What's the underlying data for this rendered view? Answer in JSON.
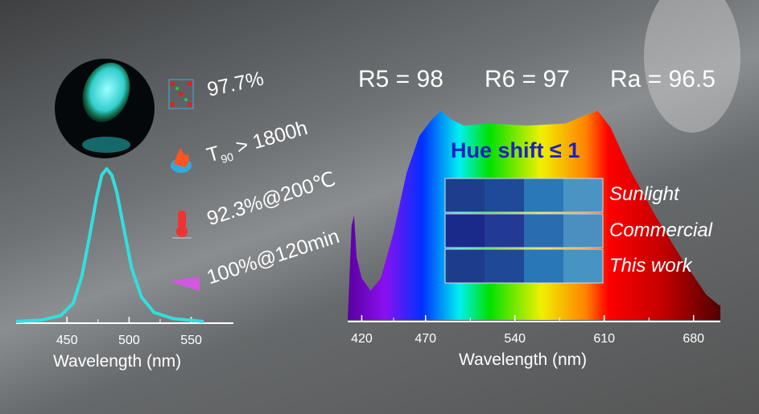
{
  "metrics": {
    "r5": "R5 = 98",
    "r6": "R6 = 97",
    "ra": "Ra = 96.5"
  },
  "properties": [
    {
      "icon": "crystal-structure-icon",
      "text": "97.7%"
    },
    {
      "icon": "fire-water-icon",
      "t_main": "T",
      "t_sub": "90",
      "text": " > 1800h"
    },
    {
      "icon": "thermometer-icon",
      "text": "92.3%@200℃"
    },
    {
      "icon": "uv-light-icon",
      "text": "100%@120min"
    }
  ],
  "hue": {
    "title": "Hue shift ≤ 1",
    "rows": [
      {
        "label": "Sunlight",
        "colors": [
          "#1d3e8c",
          "#1f4a9a",
          "#2a78b8",
          "#4a94c4"
        ]
      },
      {
        "label": "Commercial",
        "colors": [
          "#1a2a8a",
          "#223a94",
          "#2a6cb0",
          "#4b8fc0"
        ]
      },
      {
        "label": "This work",
        "colors": [
          "#1d3c8c",
          "#1f4896",
          "#2977b6",
          "#4693c4"
        ]
      }
    ]
  },
  "chart_data": [
    {
      "type": "line",
      "xlabel": "Wavelength (nm)",
      "xticks": [
        450,
        500,
        550
      ],
      "xlim": [
        409,
        584
      ],
      "color": "#33dede",
      "x": [
        409,
        430,
        445,
        455,
        462,
        468,
        474,
        478,
        482,
        486,
        490,
        496,
        502,
        510,
        520,
        535,
        560
      ],
      "y": [
        0,
        0.01,
        0.04,
        0.12,
        0.3,
        0.55,
        0.82,
        0.96,
        1.0,
        0.96,
        0.85,
        0.6,
        0.35,
        0.16,
        0.06,
        0.02,
        0
      ]
    },
    {
      "type": "area",
      "xlabel": "Wavelength (nm)",
      "xticks": [
        420,
        470,
        540,
        610,
        680
      ],
      "xlim": [
        409,
        701
      ],
      "x": [
        409,
        412,
        414,
        416,
        420,
        427,
        435,
        445,
        455,
        465,
        475,
        482,
        490,
        500,
        520,
        550,
        580,
        595,
        605,
        615,
        630,
        650,
        670,
        690,
        700
      ],
      "y": [
        0,
        0.45,
        0.5,
        0.3,
        0.2,
        0.14,
        0.2,
        0.42,
        0.7,
        0.88,
        0.96,
        1.0,
        0.96,
        0.93,
        0.94,
        0.93,
        0.94,
        0.98,
        1.0,
        0.92,
        0.72,
        0.5,
        0.3,
        0.12,
        0.07
      ]
    }
  ]
}
